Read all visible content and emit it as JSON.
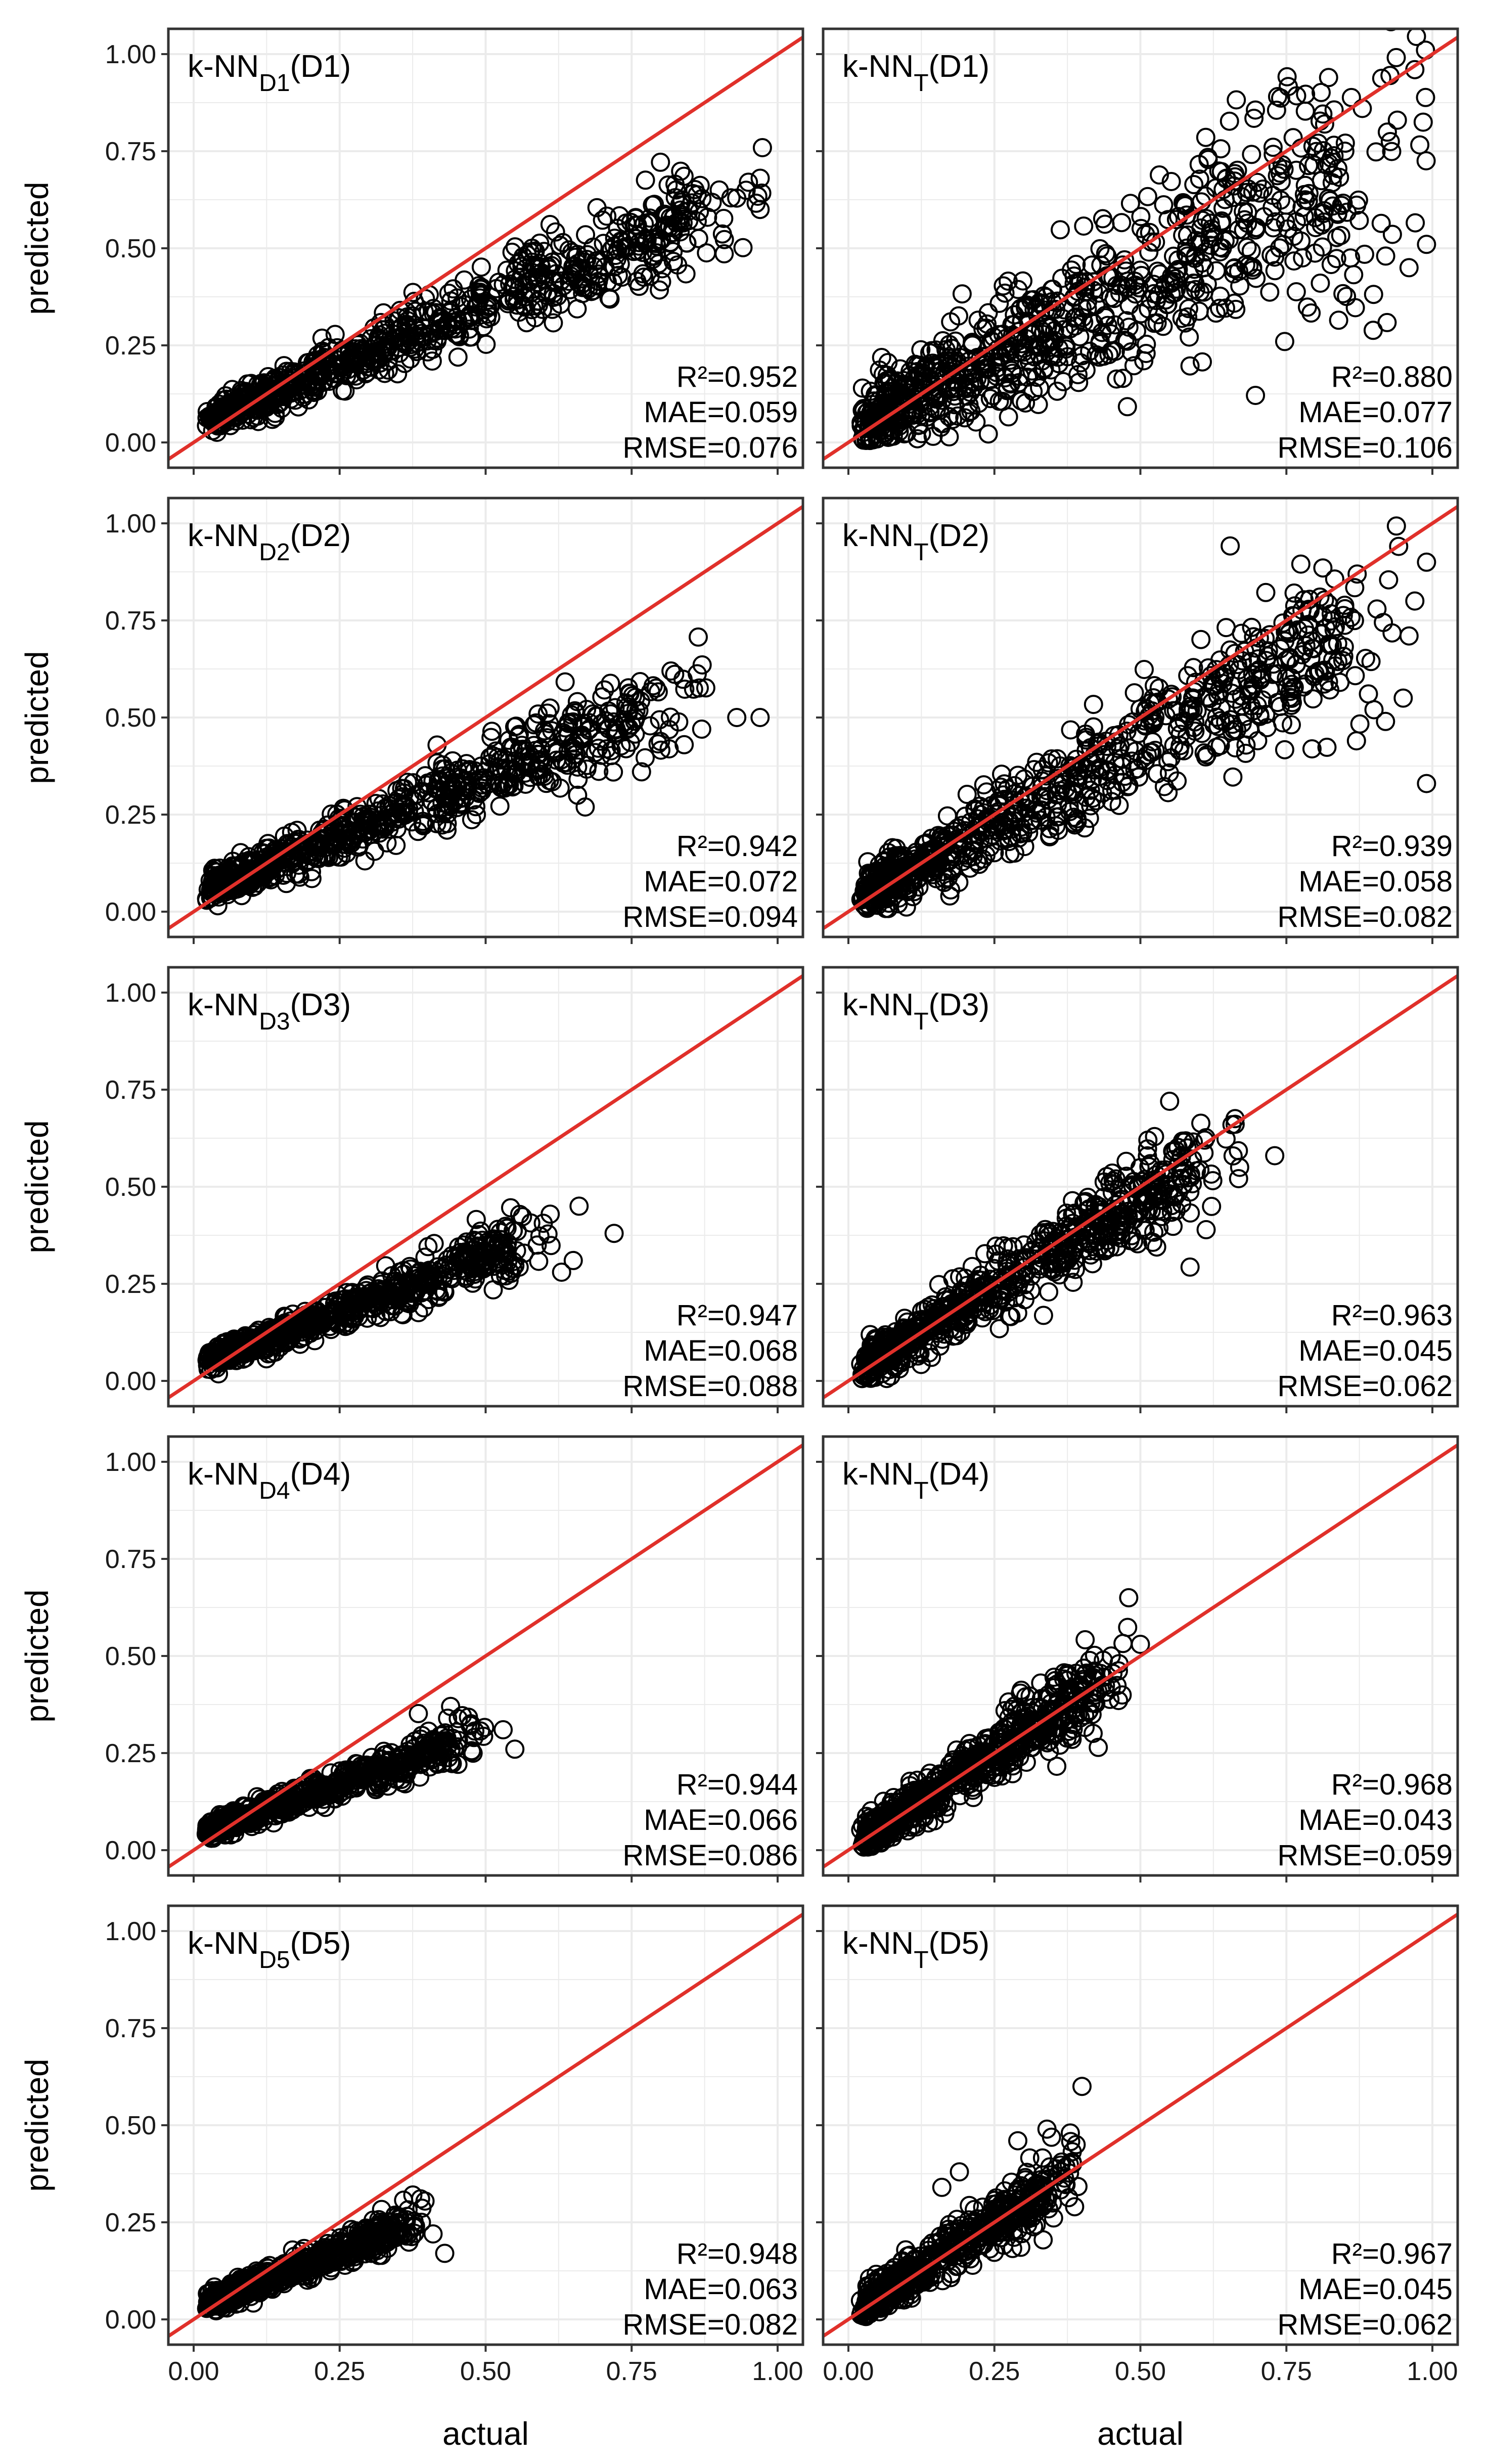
{
  "figure": {
    "xlabel": "actual",
    "ylabel": "predicted",
    "x_ticks": [
      "0.00",
      "0.25",
      "0.50",
      "0.75",
      "1.00"
    ],
    "y_ticks": [
      "0.00",
      "0.25",
      "0.50",
      "0.75",
      "1.00"
    ],
    "point_color": "#000000",
    "line_color": "#e0302a",
    "grid_color": "#ebebeb"
  },
  "chart_data": [
    {
      "type": "scatter",
      "label": "k-NN",
      "subscript": "D1",
      "suffix": "(D1)",
      "r2": "R²=0.952",
      "mae": "MAE=0.059",
      "rmse": "RMSE=0.076",
      "xlim": [
        0,
        1
      ],
      "ylim": [
        0,
        1
      ],
      "cloud": {
        "slope": 0.62,
        "intercept": 0.045,
        "spread": 0.035,
        "xmax": 0.98,
        "n": 700,
        "seed": 11
      },
      "extra_points": [
        [
          0.95,
          0.67
        ],
        [
          0.97,
          0.6
        ],
        [
          0.92,
          0.63
        ],
        [
          0.9,
          0.65
        ],
        [
          0.88,
          0.58
        ]
      ],
      "reference_line": [
        [
          0,
          0
        ],
        [
          1,
          1
        ]
      ]
    },
    {
      "type": "scatter",
      "label": "k-NN",
      "subscript": "T",
      "suffix": "(D1)",
      "r2": "R²=0.880",
      "mae": "MAE=0.077",
      "rmse": "RMSE=0.106",
      "xlim": [
        0,
        1
      ],
      "ylim": [
        0,
        1
      ],
      "cloud": {
        "slope": 0.74,
        "intercept": 0.04,
        "spread": 0.085,
        "xmax": 0.99,
        "n": 750,
        "seed": 21
      },
      "extra_points": [
        [
          0.97,
          0.96
        ],
        [
          0.94,
          0.83
        ],
        [
          0.88,
          0.86
        ],
        [
          0.85,
          0.75
        ],
        [
          0.96,
          0.45
        ],
        [
          0.99,
          0.51
        ],
        [
          0.92,
          0.48
        ]
      ],
      "reference_line": [
        [
          0,
          0
        ],
        [
          1,
          1
        ]
      ]
    },
    {
      "type": "scatter",
      "label": "k-NN",
      "subscript": "D2",
      "suffix": "(D2)",
      "r2": "R²=0.942",
      "mae": "MAE=0.072",
      "rmse": "RMSE=0.094",
      "xlim": [
        0,
        1
      ],
      "ylim": [
        0,
        1
      ],
      "cloud": {
        "slope": 0.6,
        "intercept": 0.045,
        "spread": 0.035,
        "xmax": 0.88,
        "n": 650,
        "seed": 31
      },
      "extra_points": [
        [
          0.97,
          0.5
        ],
        [
          0.93,
          0.5
        ],
        [
          0.87,
          0.47
        ],
        [
          0.84,
          0.43
        ]
      ],
      "reference_line": [
        [
          0,
          0
        ],
        [
          1,
          1
        ]
      ]
    },
    {
      "type": "scatter",
      "label": "k-NN",
      "subscript": "T",
      "suffix": "(D2)",
      "r2": "R²=0.939",
      "mae": "MAE=0.058",
      "rmse": "RMSE=0.082",
      "xlim": [
        0,
        1
      ],
      "ylim": [
        0,
        1
      ],
      "cloud": {
        "slope": 0.82,
        "intercept": 0.02,
        "spread": 0.055,
        "xmax": 0.98,
        "n": 700,
        "seed": 41
      },
      "extra_points": [
        [
          0.99,
          0.9
        ],
        [
          0.97,
          0.8
        ],
        [
          0.96,
          0.71
        ],
        [
          0.99,
          0.33
        ],
        [
          0.95,
          0.55
        ],
        [
          0.9,
          0.52
        ],
        [
          0.87,
          0.44
        ]
      ],
      "reference_line": [
        [
          0,
          0
        ],
        [
          1,
          1
        ]
      ]
    },
    {
      "type": "scatter",
      "label": "k-NN",
      "subscript": "D3",
      "suffix": "(D3)",
      "r2": "R²=0.947",
      "mae": "MAE=0.068",
      "rmse": "RMSE=0.088",
      "xlim": [
        0,
        1
      ],
      "ylim": [
        0,
        1
      ],
      "cloud": {
        "slope": 0.55,
        "intercept": 0.04,
        "spread": 0.025,
        "xmax": 0.62,
        "n": 600,
        "seed": 51
      },
      "extra_points": [
        [
          0.72,
          0.38
        ],
        [
          0.66,
          0.45
        ],
        [
          0.65,
          0.31
        ],
        [
          0.63,
          0.28
        ]
      ],
      "reference_line": [
        [
          0,
          0
        ],
        [
          1,
          1
        ]
      ]
    },
    {
      "type": "scatter",
      "label": "k-NN",
      "subscript": "T",
      "suffix": "(D3)",
      "r2": "R²=0.963",
      "mae": "MAE=0.045",
      "rmse": "RMSE=0.062",
      "xlim": [
        0,
        1
      ],
      "ylim": [
        0,
        1
      ],
      "cloud": {
        "slope": 0.92,
        "intercept": 0.01,
        "spread": 0.045,
        "xmax": 0.67,
        "n": 650,
        "seed": 61
      },
      "extra_points": [
        [
          0.73,
          0.58
        ],
        [
          0.67,
          0.55
        ],
        [
          0.61,
          0.62
        ],
        [
          0.55,
          0.72
        ],
        [
          0.58,
          0.6
        ]
      ],
      "reference_line": [
        [
          0,
          0
        ],
        [
          1,
          1
        ]
      ]
    },
    {
      "type": "scatter",
      "label": "k-NN",
      "subscript": "D4",
      "suffix": "(D4)",
      "r2": "R²=0.944",
      "mae": "MAE=0.066",
      "rmse": "RMSE=0.086",
      "xlim": [
        0,
        1
      ],
      "ylim": [
        0,
        1
      ],
      "cloud": {
        "slope": 0.52,
        "intercept": 0.04,
        "spread": 0.022,
        "xmax": 0.5,
        "n": 550,
        "seed": 71
      },
      "extra_points": [
        [
          0.55,
          0.26
        ],
        [
          0.53,
          0.31
        ],
        [
          0.48,
          0.29
        ],
        [
          0.44,
          0.37
        ]
      ],
      "reference_line": [
        [
          0,
          0
        ],
        [
          1,
          1
        ]
      ]
    },
    {
      "type": "scatter",
      "label": "k-NN",
      "subscript": "T",
      "suffix": "(D4)",
      "r2": "R²=0.968",
      "mae": "MAE=0.043",
      "rmse": "RMSE=0.059",
      "xlim": [
        0,
        1
      ],
      "ylim": [
        0,
        1
      ],
      "cloud": {
        "slope": 0.98,
        "intercept": 0.005,
        "spread": 0.04,
        "xmax": 0.48,
        "n": 600,
        "seed": 81
      },
      "extra_points": [
        [
          0.5,
          0.53
        ],
        [
          0.48,
          0.65
        ],
        [
          0.45,
          0.5
        ]
      ],
      "reference_line": [
        [
          0,
          0
        ],
        [
          1,
          1
        ]
      ]
    },
    {
      "type": "scatter",
      "label": "k-NN",
      "subscript": "D5",
      "suffix": "(D5)",
      "r2": "R²=0.948",
      "mae": "MAE=0.063",
      "rmse": "RMSE=0.082",
      "xlim": [
        0,
        1
      ],
      "ylim": [
        0,
        1
      ],
      "cloud": {
        "slope": 0.58,
        "intercept": 0.03,
        "spread": 0.022,
        "xmax": 0.4,
        "n": 550,
        "seed": 91
      },
      "extra_points": [
        [
          0.43,
          0.17
        ],
        [
          0.41,
          0.22
        ],
        [
          0.39,
          0.25
        ],
        [
          0.38,
          0.24
        ]
      ],
      "reference_line": [
        [
          0,
          0
        ],
        [
          1,
          1
        ]
      ]
    },
    {
      "type": "scatter",
      "label": "k-NN",
      "subscript": "T",
      "suffix": "(D5)",
      "r2": "R²=0.967",
      "mae": "MAE=0.045",
      "rmse": "RMSE=0.062",
      "xlim": [
        0,
        1
      ],
      "ylim": [
        0,
        1
      ],
      "cloud": {
        "slope": 0.95,
        "intercept": 0.01,
        "spread": 0.035,
        "xmax": 0.4,
        "n": 550,
        "seed": 101
      },
      "extra_points": [
        [
          0.4,
          0.6
        ],
        [
          0.38,
          0.48
        ],
        [
          0.34,
          0.49
        ],
        [
          0.29,
          0.46
        ],
        [
          0.19,
          0.38
        ],
        [
          0.16,
          0.34
        ],
        [
          0.39,
          0.45
        ]
      ],
      "reference_line": [
        [
          0,
          0
        ],
        [
          1,
          1
        ]
      ]
    }
  ]
}
